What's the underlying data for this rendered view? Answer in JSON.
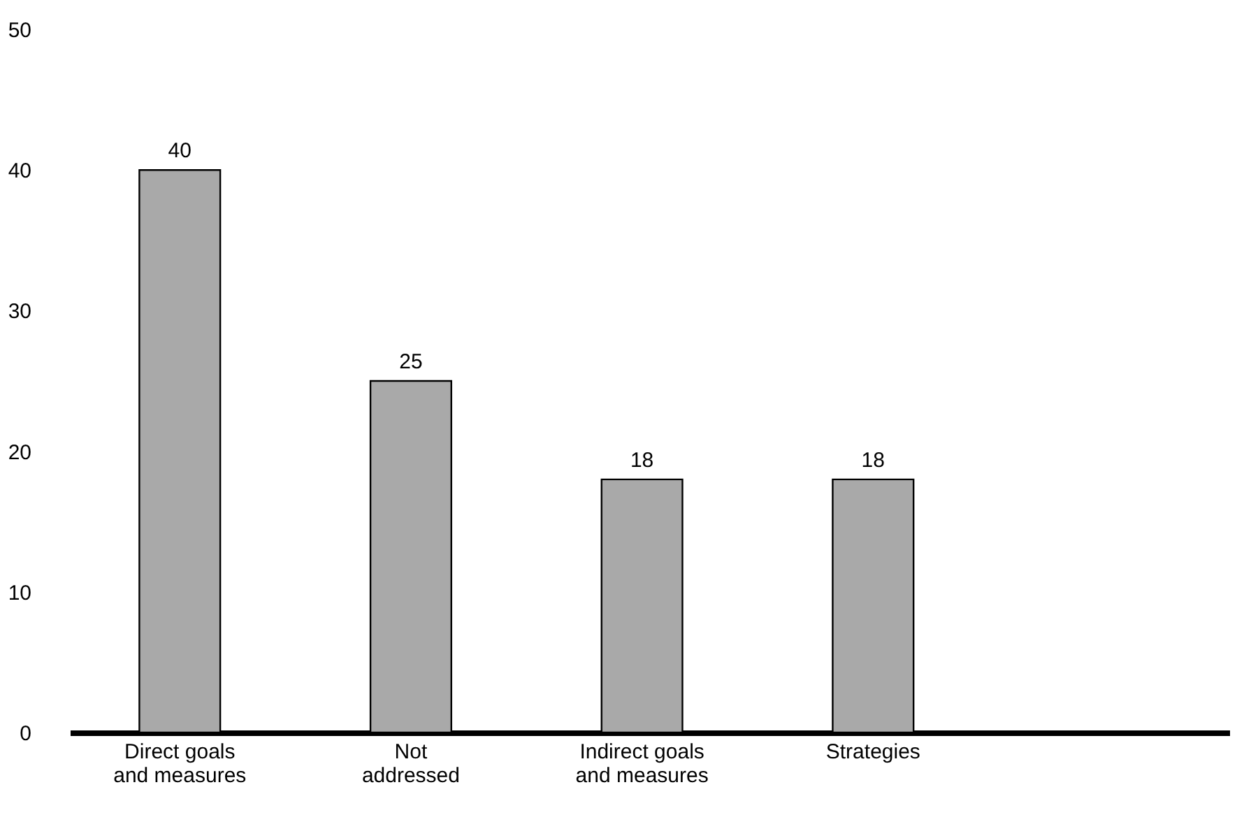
{
  "chart_data": {
    "type": "bar",
    "categories": [
      "Direct goals\nand measures",
      "Not\naddressed",
      "Indirect goals\nand measures",
      "Strategies"
    ],
    "values": [
      40,
      25,
      18,
      18
    ],
    "color": "#a9a9a9",
    "ylim": [
      0,
      50
    ],
    "yticks": [
      0,
      10,
      20,
      30,
      40,
      50
    ],
    "grid": false,
    "data_labels": true
  }
}
